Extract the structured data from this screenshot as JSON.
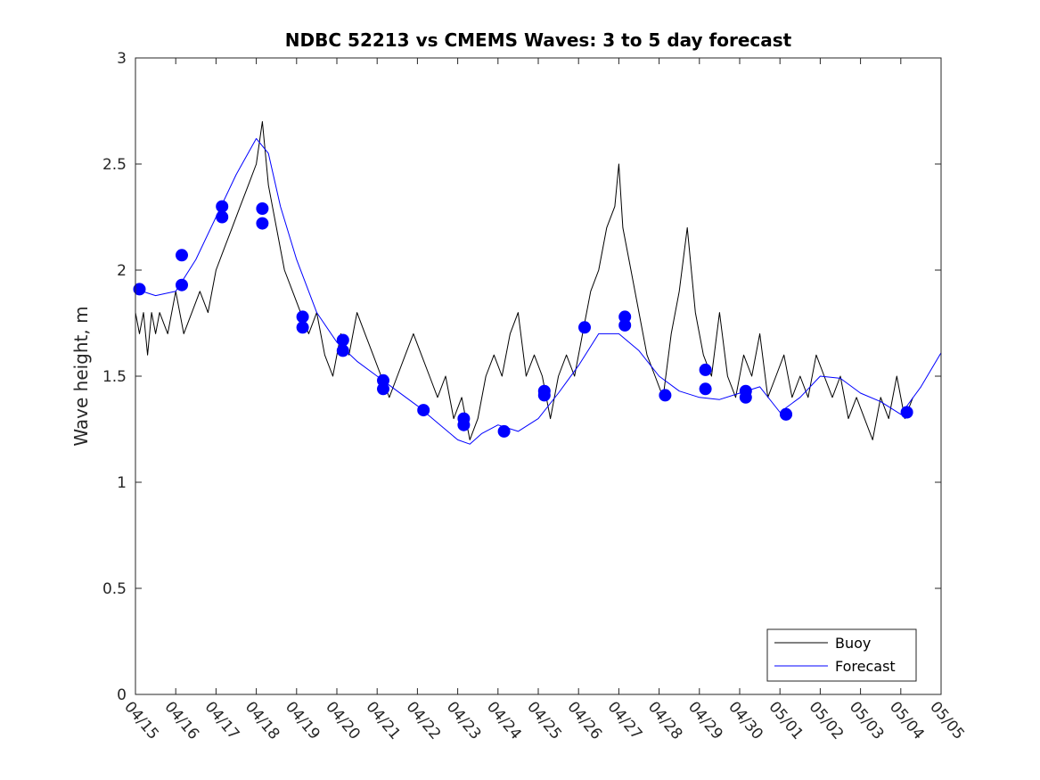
{
  "chart_data": {
    "type": "line",
    "title": "NDBC 52213 vs CMEMS Waves: 3 to 5 day forecast",
    "xlabel": "",
    "ylabel": "Wave height, m",
    "ylim": [
      0,
      3
    ],
    "yticks": [
      0,
      0.5,
      1,
      1.5,
      2,
      2.5,
      3
    ],
    "ytick_labels": [
      "0",
      "0.5",
      "1",
      "1.5",
      "2",
      "2.5",
      "3"
    ],
    "xlim": [
      0,
      20
    ],
    "xtick_labels": [
      "04/15",
      "04/16",
      "04/17",
      "04/18",
      "04/19",
      "04/20",
      "04/21",
      "04/22",
      "04/23",
      "04/24",
      "04/25",
      "04/26",
      "04/27",
      "04/28",
      "04/29",
      "04/30",
      "05/01",
      "05/02",
      "05/03",
      "05/04",
      "05/05"
    ],
    "grid": false,
    "legend": {
      "location": "bottom-right",
      "entries": [
        "Buoy",
        "Forecast"
      ]
    },
    "colors": {
      "buoy": "#000000",
      "forecast": "#0000ff"
    },
    "series": [
      {
        "name": "Buoy",
        "x": [
          0,
          0.1,
          0.2,
          0.3,
          0.4,
          0.5,
          0.6,
          0.8,
          1.0,
          1.2,
          1.4,
          1.6,
          1.8,
          2.0,
          2.2,
          2.4,
          2.6,
          2.8,
          3.0,
          3.15,
          3.3,
          3.5,
          3.7,
          3.9,
          4.1,
          4.3,
          4.5,
          4.7,
          4.9,
          5.1,
          5.3,
          5.5,
          5.7,
          5.9,
          6.1,
          6.3,
          6.5,
          6.7,
          6.9,
          7.1,
          7.3,
          7.5,
          7.7,
          7.9,
          8.1,
          8.3,
          8.5,
          8.7,
          8.9,
          9.1,
          9.3,
          9.5,
          9.7,
          9.9,
          10.1,
          10.3,
          10.5,
          10.7,
          10.9,
          11.1,
          11.3,
          11.5,
          11.7,
          11.9,
          12.0,
          12.1,
          12.3,
          12.5,
          12.7,
          12.9,
          13.1,
          13.3,
          13.5,
          13.7,
          13.9,
          14.1,
          14.3,
          14.5,
          14.7,
          14.9,
          15.1,
          15.3,
          15.5,
          15.7,
          15.9,
          16.1,
          16.3,
          16.5,
          16.7,
          16.9,
          17.1,
          17.3,
          17.5,
          17.7,
          17.9,
          18.1,
          18.3,
          18.5,
          18.7,
          18.9,
          19.1,
          19.3
        ],
        "values": [
          1.8,
          1.7,
          1.8,
          1.6,
          1.8,
          1.7,
          1.8,
          1.7,
          1.9,
          1.7,
          1.8,
          1.9,
          1.8,
          2.0,
          2.1,
          2.2,
          2.3,
          2.4,
          2.5,
          2.7,
          2.4,
          2.2,
          2.0,
          1.9,
          1.8,
          1.7,
          1.8,
          1.6,
          1.5,
          1.7,
          1.6,
          1.8,
          1.7,
          1.6,
          1.5,
          1.4,
          1.5,
          1.6,
          1.7,
          1.6,
          1.5,
          1.4,
          1.5,
          1.3,
          1.4,
          1.2,
          1.3,
          1.5,
          1.6,
          1.5,
          1.7,
          1.8,
          1.5,
          1.6,
          1.5,
          1.3,
          1.5,
          1.6,
          1.5,
          1.7,
          1.9,
          2.0,
          2.2,
          2.3,
          2.5,
          2.2,
          2.0,
          1.8,
          1.6,
          1.5,
          1.4,
          1.7,
          1.9,
          2.2,
          1.8,
          1.6,
          1.5,
          1.8,
          1.5,
          1.4,
          1.6,
          1.5,
          1.7,
          1.4,
          1.5,
          1.6,
          1.4,
          1.5,
          1.4,
          1.6,
          1.5,
          1.4,
          1.5,
          1.3,
          1.4,
          1.3,
          1.2,
          1.4,
          1.3,
          1.5,
          1.3,
          1.4
        ]
      },
      {
        "name": "Forecast",
        "x": [
          0,
          0.5,
          1.0,
          1.5,
          2.0,
          2.5,
          3.0,
          3.3,
          3.6,
          4.0,
          4.5,
          5.0,
          5.5,
          6.0,
          6.5,
          7.0,
          7.5,
          8.0,
          8.3,
          8.6,
          9.0,
          9.5,
          10.0,
          10.5,
          11.0,
          11.5,
          12.0,
          12.5,
          13.0,
          13.5,
          14.0,
          14.5,
          15.0,
          15.5,
          16.0,
          16.5,
          17.0,
          17.5,
          18.0,
          18.5,
          19.0,
          19.5,
          20.0
        ],
        "values": [
          1.91,
          1.88,
          1.9,
          2.05,
          2.25,
          2.45,
          2.62,
          2.55,
          2.3,
          2.05,
          1.8,
          1.66,
          1.57,
          1.5,
          1.43,
          1.36,
          1.28,
          1.2,
          1.18,
          1.23,
          1.27,
          1.24,
          1.3,
          1.42,
          1.55,
          1.7,
          1.7,
          1.62,
          1.5,
          1.43,
          1.4,
          1.39,
          1.42,
          1.45,
          1.33,
          1.4,
          1.5,
          1.49,
          1.42,
          1.38,
          1.32,
          1.45,
          1.61
        ]
      }
    ],
    "markers": {
      "x": [
        0.1,
        1.15,
        1.15,
        2.15,
        2.15,
        3.15,
        3.15,
        4.15,
        4.15,
        5.15,
        5.15,
        6.15,
        6.15,
        7.15,
        8.15,
        8.15,
        9.15,
        10.15,
        10.15,
        11.15,
        12.15,
        12.15,
        13.15,
        14.15,
        14.15,
        15.15,
        15.15,
        16.15,
        16.15,
        19.15
      ],
      "values": [
        1.91,
        2.07,
        1.93,
        2.3,
        2.25,
        2.29,
        2.22,
        1.78,
        1.73,
        1.67,
        1.62,
        1.48,
        1.44,
        1.34,
        1.3,
        1.27,
        1.24,
        1.43,
        1.41,
        1.73,
        1.78,
        1.74,
        1.41,
        1.53,
        1.44,
        1.43,
        1.4,
        1.32,
        1.32,
        1.33
      ]
    }
  }
}
